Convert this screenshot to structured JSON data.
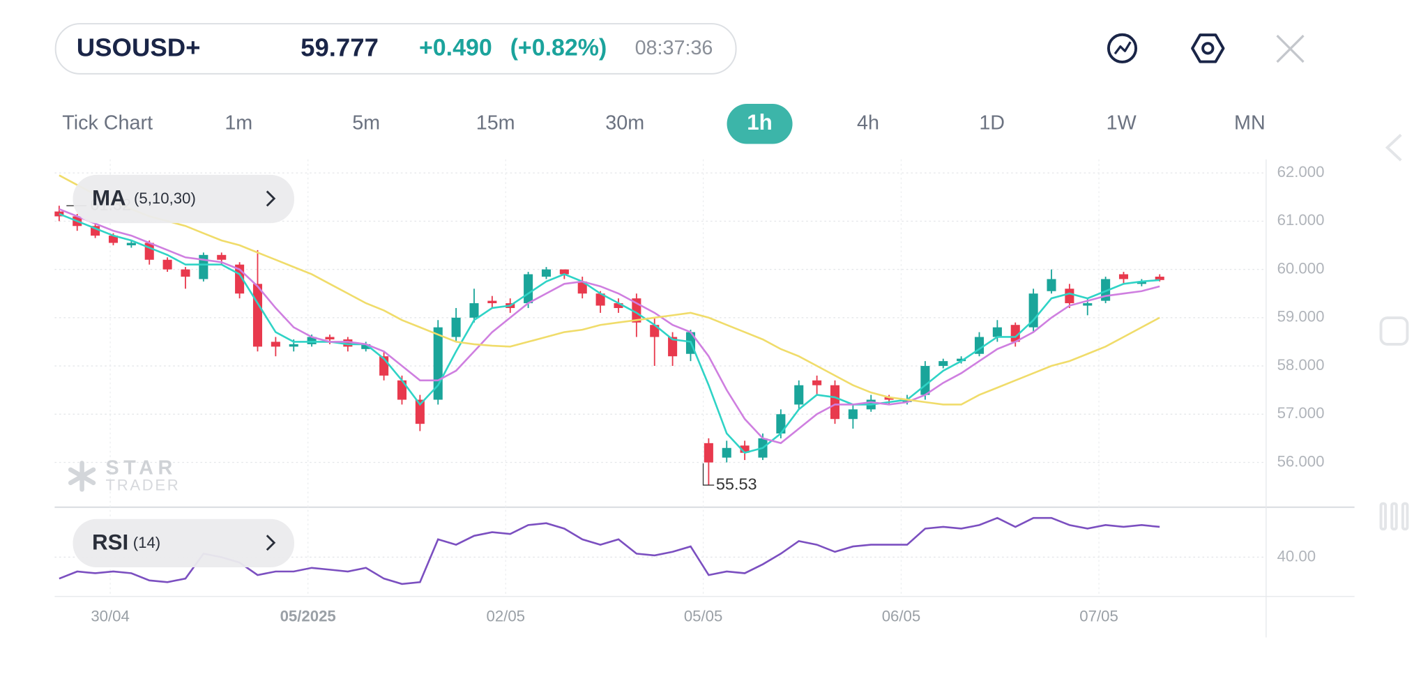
{
  "header": {
    "symbol": "USOUSD+",
    "price": "59.777",
    "change": "+0.490",
    "change_percent": "(+0.82%)",
    "time": "08:37:36"
  },
  "timeframes": {
    "items": [
      "Tick Chart",
      "1m",
      "5m",
      "15m",
      "30m",
      "1h",
      "4h",
      "1D",
      "1W",
      "MN"
    ],
    "selected": "1h"
  },
  "watermark": {
    "line1": "STAR",
    "line2": "TRADER"
  },
  "chart_data": {
    "type": "candlestick",
    "up_color": "#1aa59a",
    "down_color": "#e8394d",
    "opens": [
      61.2,
      61.1,
      60.9,
      60.7,
      60.5,
      60.55,
      60.2,
      60.0,
      59.8,
      60.3,
      60.1,
      59.7,
      58.5,
      58.4,
      58.45,
      58.6,
      58.55,
      58.35,
      58.2,
      57.7,
      57.3,
      57.3,
      58.6,
      59.0,
      59.35,
      59.3,
      59.3,
      59.85,
      60.0,
      59.75,
      59.5,
      59.3,
      59.4,
      58.85,
      58.6,
      58.25,
      56.4,
      56.1,
      56.35,
      56.1,
      56.6,
      57.2,
      57.7,
      57.6,
      56.9,
      57.1,
      57.35,
      57.25,
      57.4,
      58.0,
      58.1,
      58.25,
      58.6,
      58.85,
      58.8,
      59.55,
      59.6,
      59.25,
      59.35,
      59.9,
      59.7,
      59.85
    ],
    "highs": [
      61.32,
      61.15,
      60.95,
      60.75,
      60.6,
      60.6,
      60.25,
      60.05,
      60.35,
      60.35,
      60.15,
      60.4,
      58.6,
      58.55,
      58.65,
      58.65,
      58.6,
      58.5,
      58.3,
      57.8,
      57.4,
      58.95,
      59.2,
      59.6,
      59.45,
      59.4,
      59.95,
      60.05,
      60.0,
      59.85,
      59.55,
      59.4,
      59.5,
      59.0,
      58.7,
      58.75,
      56.5,
      56.45,
      56.45,
      56.6,
      57.1,
      57.7,
      57.8,
      57.7,
      57.2,
      57.4,
      57.4,
      57.4,
      58.1,
      58.15,
      58.2,
      58.7,
      58.95,
      58.9,
      59.6,
      60.0,
      59.7,
      59.4,
      59.85,
      59.95,
      59.8,
      59.9
    ],
    "lows": [
      61.0,
      60.8,
      60.65,
      60.5,
      60.45,
      60.1,
      59.95,
      59.6,
      59.75,
      60.1,
      59.4,
      58.3,
      58.2,
      58.3,
      58.4,
      58.45,
      58.3,
      58.3,
      57.7,
      57.2,
      56.65,
      57.2,
      58.5,
      58.9,
      59.2,
      59.1,
      59.2,
      59.8,
      59.8,
      59.4,
      59.1,
      59.1,
      58.6,
      58.0,
      58.0,
      58.1,
      55.53,
      56.0,
      56.05,
      56.05,
      56.5,
      57.1,
      57.4,
      56.8,
      56.7,
      57.05,
      57.2,
      57.2,
      57.3,
      57.95,
      58.05,
      58.2,
      58.5,
      58.4,
      58.7,
      59.5,
      59.2,
      59.05,
      59.3,
      59.7,
      59.65,
      59.75
    ],
    "closes": [
      61.1,
      60.9,
      60.7,
      60.55,
      60.55,
      60.2,
      60.0,
      59.85,
      60.3,
      60.2,
      59.5,
      58.4,
      58.4,
      58.45,
      58.6,
      58.55,
      58.4,
      58.45,
      57.8,
      57.3,
      56.8,
      58.8,
      59.0,
      59.3,
      59.3,
      59.2,
      59.9,
      60.0,
      59.9,
      59.5,
      59.25,
      59.2,
      58.9,
      58.6,
      58.2,
      58.7,
      56.0,
      56.3,
      56.2,
      56.5,
      57.0,
      57.6,
      57.6,
      56.9,
      57.1,
      57.3,
      57.3,
      57.3,
      58.0,
      58.1,
      58.15,
      58.6,
      58.8,
      58.5,
      59.5,
      59.8,
      59.3,
      59.3,
      59.8,
      59.8,
      59.75,
      59.78
    ],
    "moving_averages": {
      "label": "MA",
      "params": "(5,10,30)",
      "series": [
        {
          "color": "#2fd3c6",
          "values": [
            61.15,
            61.0,
            60.85,
            60.7,
            60.6,
            60.45,
            60.3,
            60.1,
            60.1,
            60.1,
            59.9,
            59.3,
            58.7,
            58.5,
            58.5,
            58.5,
            58.45,
            58.45,
            58.15,
            57.7,
            57.2,
            57.6,
            58.3,
            58.95,
            59.2,
            59.25,
            59.5,
            59.75,
            59.9,
            59.75,
            59.5,
            59.3,
            59.1,
            58.85,
            58.55,
            58.5,
            57.6,
            56.6,
            56.2,
            56.3,
            56.6,
            57.1,
            57.4,
            57.35,
            57.2,
            57.2,
            57.25,
            57.3,
            57.6,
            57.9,
            58.1,
            58.35,
            58.6,
            58.6,
            58.95,
            59.4,
            59.5,
            59.4,
            59.55,
            59.7,
            59.75,
            59.78
          ]
        },
        {
          "color": "#cf7fe0",
          "values": [
            61.25,
            61.1,
            60.95,
            60.8,
            60.7,
            60.55,
            60.4,
            60.25,
            60.2,
            60.15,
            60.0,
            59.65,
            59.2,
            58.8,
            58.6,
            58.5,
            58.5,
            58.45,
            58.3,
            58.0,
            57.7,
            57.7,
            57.9,
            58.3,
            58.7,
            59.0,
            59.3,
            59.5,
            59.7,
            59.75,
            59.65,
            59.5,
            59.3,
            59.1,
            58.85,
            58.7,
            58.2,
            57.5,
            56.9,
            56.5,
            56.4,
            56.7,
            57.0,
            57.2,
            57.2,
            57.25,
            57.2,
            57.25,
            57.4,
            57.65,
            57.85,
            58.1,
            58.35,
            58.5,
            58.7,
            59.0,
            59.25,
            59.35,
            59.45,
            59.5,
            59.55,
            59.65
          ]
        },
        {
          "color": "#f0dc6a",
          "values": [
            61.95,
            61.75,
            61.55,
            61.4,
            61.25,
            61.1,
            61.0,
            60.9,
            60.75,
            60.6,
            60.5,
            60.35,
            60.2,
            60.05,
            59.9,
            59.7,
            59.5,
            59.3,
            59.15,
            58.95,
            58.8,
            58.65,
            58.5,
            58.45,
            58.42,
            58.4,
            58.5,
            58.6,
            58.7,
            58.75,
            58.85,
            58.9,
            58.95,
            59.0,
            59.05,
            59.1,
            59.0,
            58.85,
            58.7,
            58.55,
            58.35,
            58.2,
            58.0,
            57.8,
            57.6,
            57.45,
            57.35,
            57.3,
            57.25,
            57.2,
            57.2,
            57.4,
            57.55,
            57.7,
            57.85,
            58.0,
            58.1,
            58.25,
            58.4,
            58.6,
            58.8,
            59.0
          ]
        }
      ]
    },
    "high_marker": 61.32,
    "low_marker": 55.53,
    "ylim": [
      55.11,
      62.28
    ],
    "yticks": [
      {
        "value": 56,
        "label": "56.000"
      },
      {
        "value": 57,
        "label": "57.000"
      },
      {
        "value": 58,
        "label": "58.000"
      },
      {
        "value": 59,
        "label": "59.000"
      },
      {
        "value": 60,
        "label": "60.000"
      },
      {
        "value": 61,
        "label": "61.000"
      },
      {
        "value": 62,
        "label": "62.000"
      }
    ],
    "xlim": [
      -0.25,
      66.9
    ],
    "xticks": [
      {
        "value": 2.83,
        "label": "30/04"
      },
      {
        "value": 13.79,
        "label": "05/2025"
      },
      {
        "value": 24.75,
        "label": "02/05"
      },
      {
        "value": 35.7,
        "label": "05/05"
      },
      {
        "value": 46.67,
        "label": "06/05"
      },
      {
        "value": 57.63,
        "label": "07/05"
      }
    ],
    "grid": true,
    "rsi": {
      "label": "RSI",
      "params": "(14)",
      "color": "#7b4fc0",
      "values": [
        28,
        32,
        31,
        32,
        31,
        27,
        26,
        28,
        42,
        40,
        37,
        30,
        32,
        32,
        34,
        33,
        32,
        34,
        28,
        25,
        26,
        50,
        47,
        52,
        54,
        53,
        58,
        59,
        56,
        50,
        47,
        50,
        42,
        41,
        43,
        46,
        30,
        32,
        31,
        36,
        42,
        49,
        47,
        43,
        46,
        47,
        47,
        47,
        56,
        57,
        56,
        58,
        62,
        57,
        62,
        62,
        58,
        56,
        58,
        57,
        58,
        57
      ],
      "ylim": [
        18,
        68
      ],
      "yticks": [
        {
          "value": 40,
          "label": "40.00"
        }
      ]
    }
  }
}
